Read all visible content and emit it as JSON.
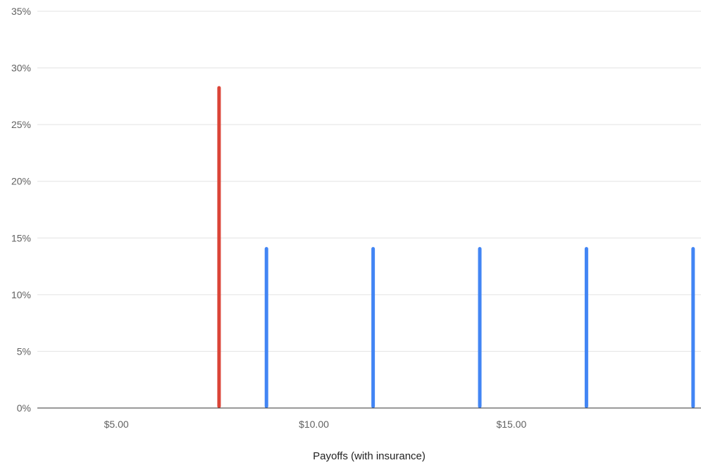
{
  "chart_data": {
    "type": "bar",
    "title": "",
    "xlabel": "Payoffs (with insurance)",
    "ylabel": "",
    "xlim": [
      3.0,
      19.8
    ],
    "ylim": [
      0,
      35
    ],
    "grid": true,
    "legend": "none",
    "x_ticks": [
      {
        "value": 5,
        "label": "$5.00"
      },
      {
        "value": 10,
        "label": "$10.00"
      },
      {
        "value": 15,
        "label": "$15.00"
      }
    ],
    "y_ticks": [
      {
        "value": 0,
        "label": "0%"
      },
      {
        "value": 5,
        "label": "5%"
      },
      {
        "value": 10,
        "label": "10%"
      },
      {
        "value": 15,
        "label": "15%"
      },
      {
        "value": 20,
        "label": "20%"
      },
      {
        "value": 25,
        "label": "25%"
      },
      {
        "value": 30,
        "label": "30%"
      },
      {
        "value": 35,
        "label": "35%"
      }
    ],
    "bars": [
      {
        "x": 7.6,
        "y": 28.4,
        "color": "#db4437"
      },
      {
        "x": 8.8,
        "y": 14.2,
        "color": "#4285f4"
      },
      {
        "x": 11.5,
        "y": 14.2,
        "color": "#4285f4"
      },
      {
        "x": 14.2,
        "y": 14.2,
        "color": "#4285f4"
      },
      {
        "x": 16.9,
        "y": 14.2,
        "color": "#4285f4"
      },
      {
        "x": 19.6,
        "y": 14.2,
        "color": "#4285f4"
      }
    ],
    "colors": {
      "highlight": "#db4437",
      "default": "#4285f4",
      "grid": "#e3e3e3",
      "axis_text": "#616161"
    }
  }
}
